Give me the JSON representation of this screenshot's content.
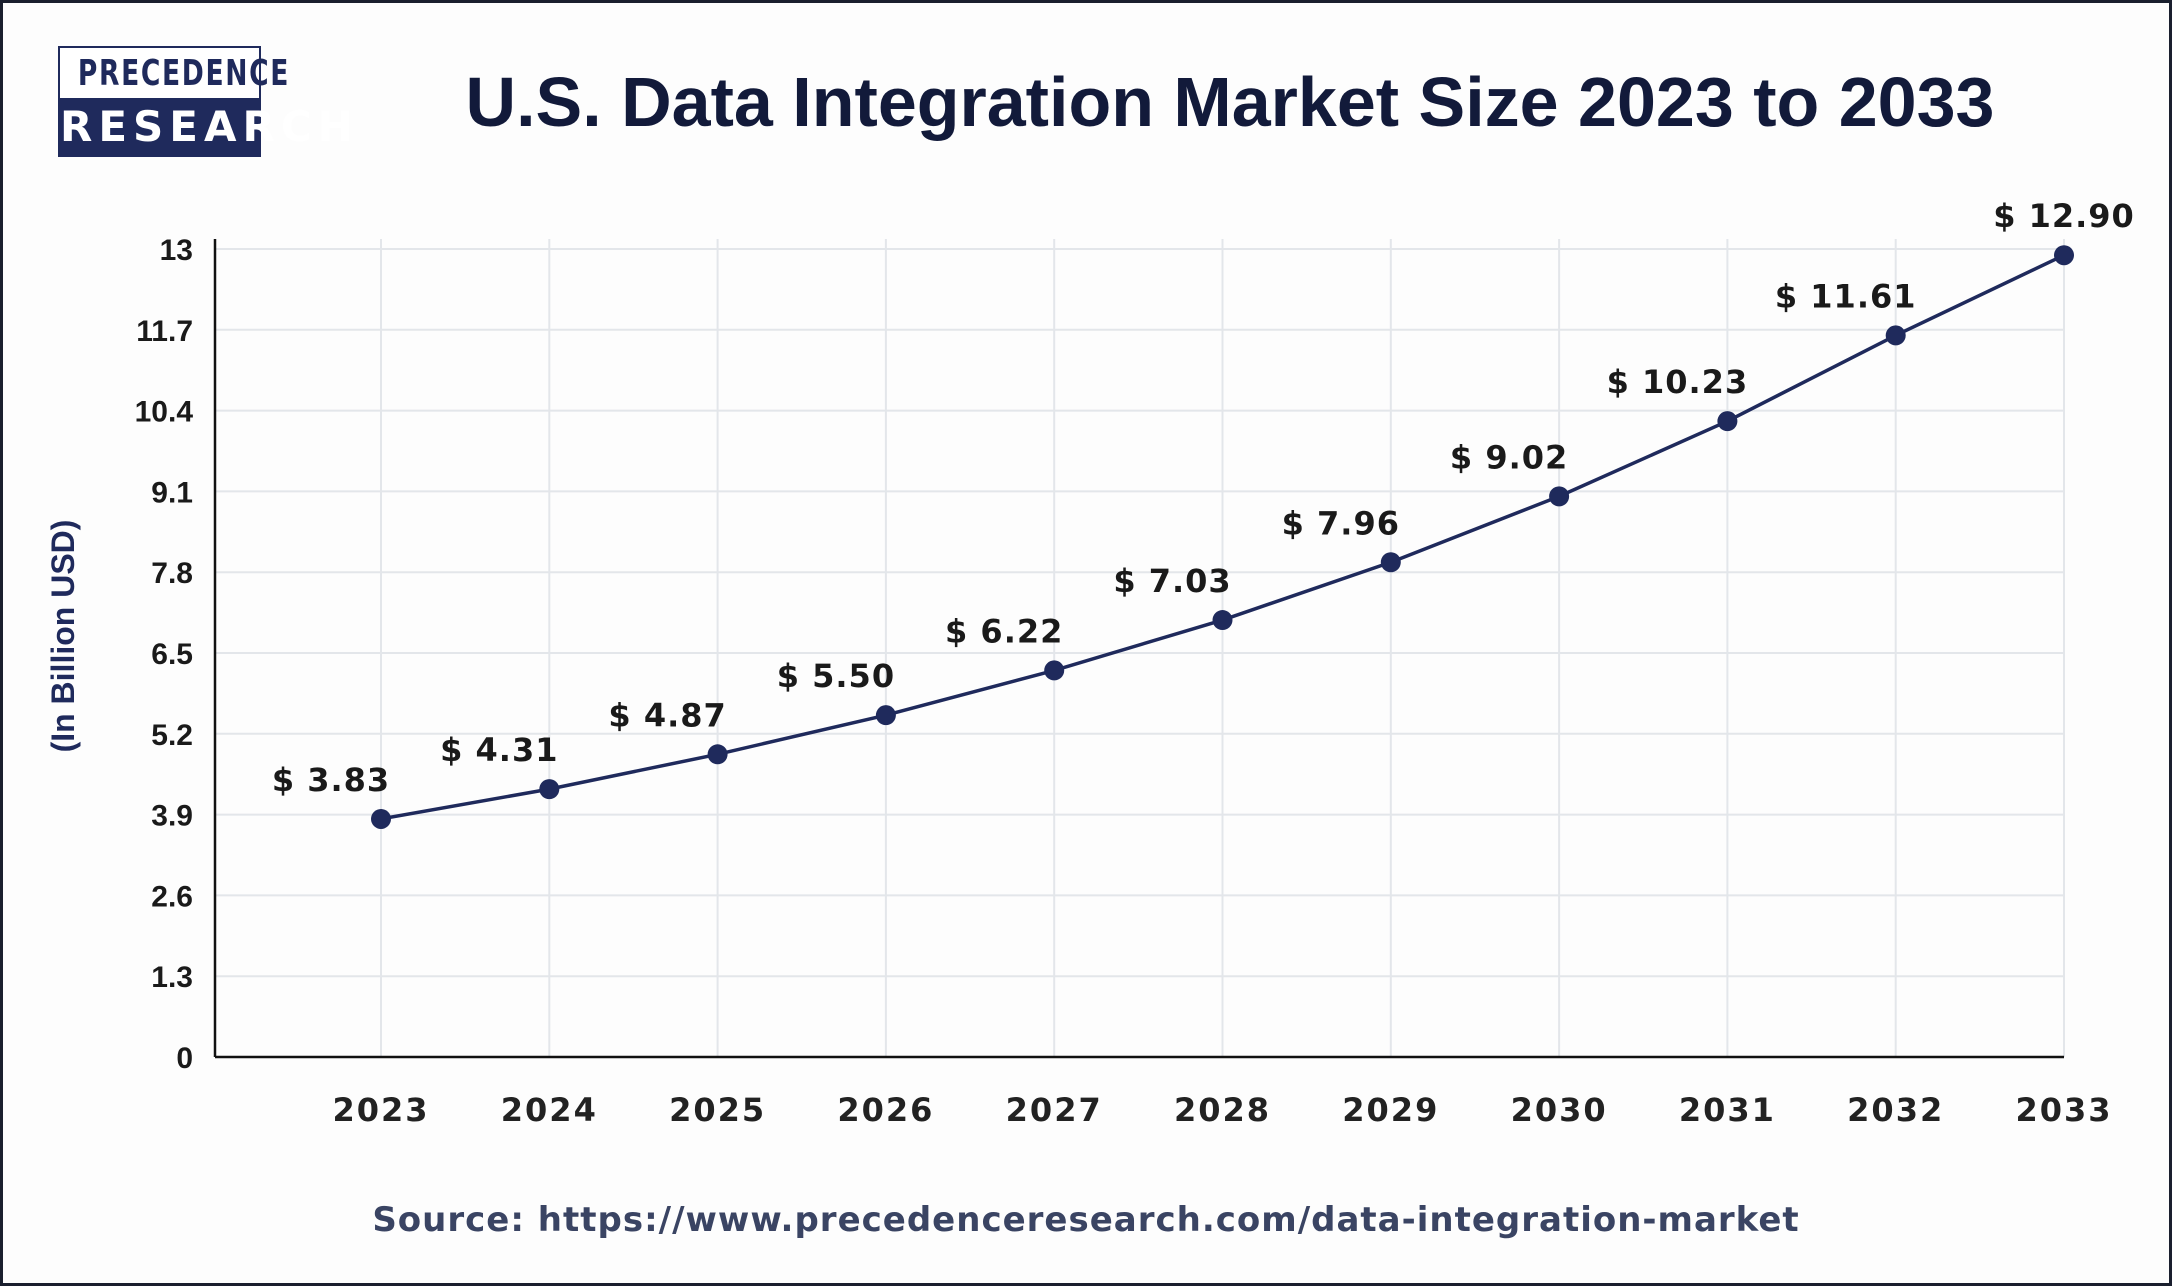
{
  "logo": {
    "line1": "PRECEDENCE",
    "line2": "RESEARCH"
  },
  "source": "Source: https://www.precedenceresearch.com/data-integration-market",
  "colors": {
    "line": "#1f2a5c",
    "title": "#121a3a",
    "grid": "#e3e6ea"
  },
  "chart_data": {
    "type": "line",
    "title": "U.S. Data Integration Market Size 2023 to 2033",
    "xlabel": "",
    "ylabel": "(In Billion USD)",
    "ylim": [
      0,
      13
    ],
    "yticks": [
      "0",
      "1.3",
      "2.6",
      "3.9",
      "5.2",
      "6.5",
      "7.8",
      "9.1",
      "10.4",
      "11.7",
      "13"
    ],
    "grid": true,
    "categories": [
      "2023",
      "2024",
      "2025",
      "2026",
      "2027",
      "2028",
      "2029",
      "2030",
      "2031",
      "2032",
      "2033"
    ],
    "values": [
      3.83,
      4.31,
      4.87,
      5.5,
      6.22,
      7.03,
      7.96,
      9.02,
      10.23,
      11.61,
      12.9
    ],
    "data_labels": [
      "$ 3.83",
      "$ 4.31",
      "$ 4.87",
      "$ 5.50",
      "$ 6.22",
      "$ 7.03",
      "$ 7.96",
      "$ 9.02",
      "$ 10.23",
      "$ 11.61",
      "$ 12.90"
    ]
  }
}
